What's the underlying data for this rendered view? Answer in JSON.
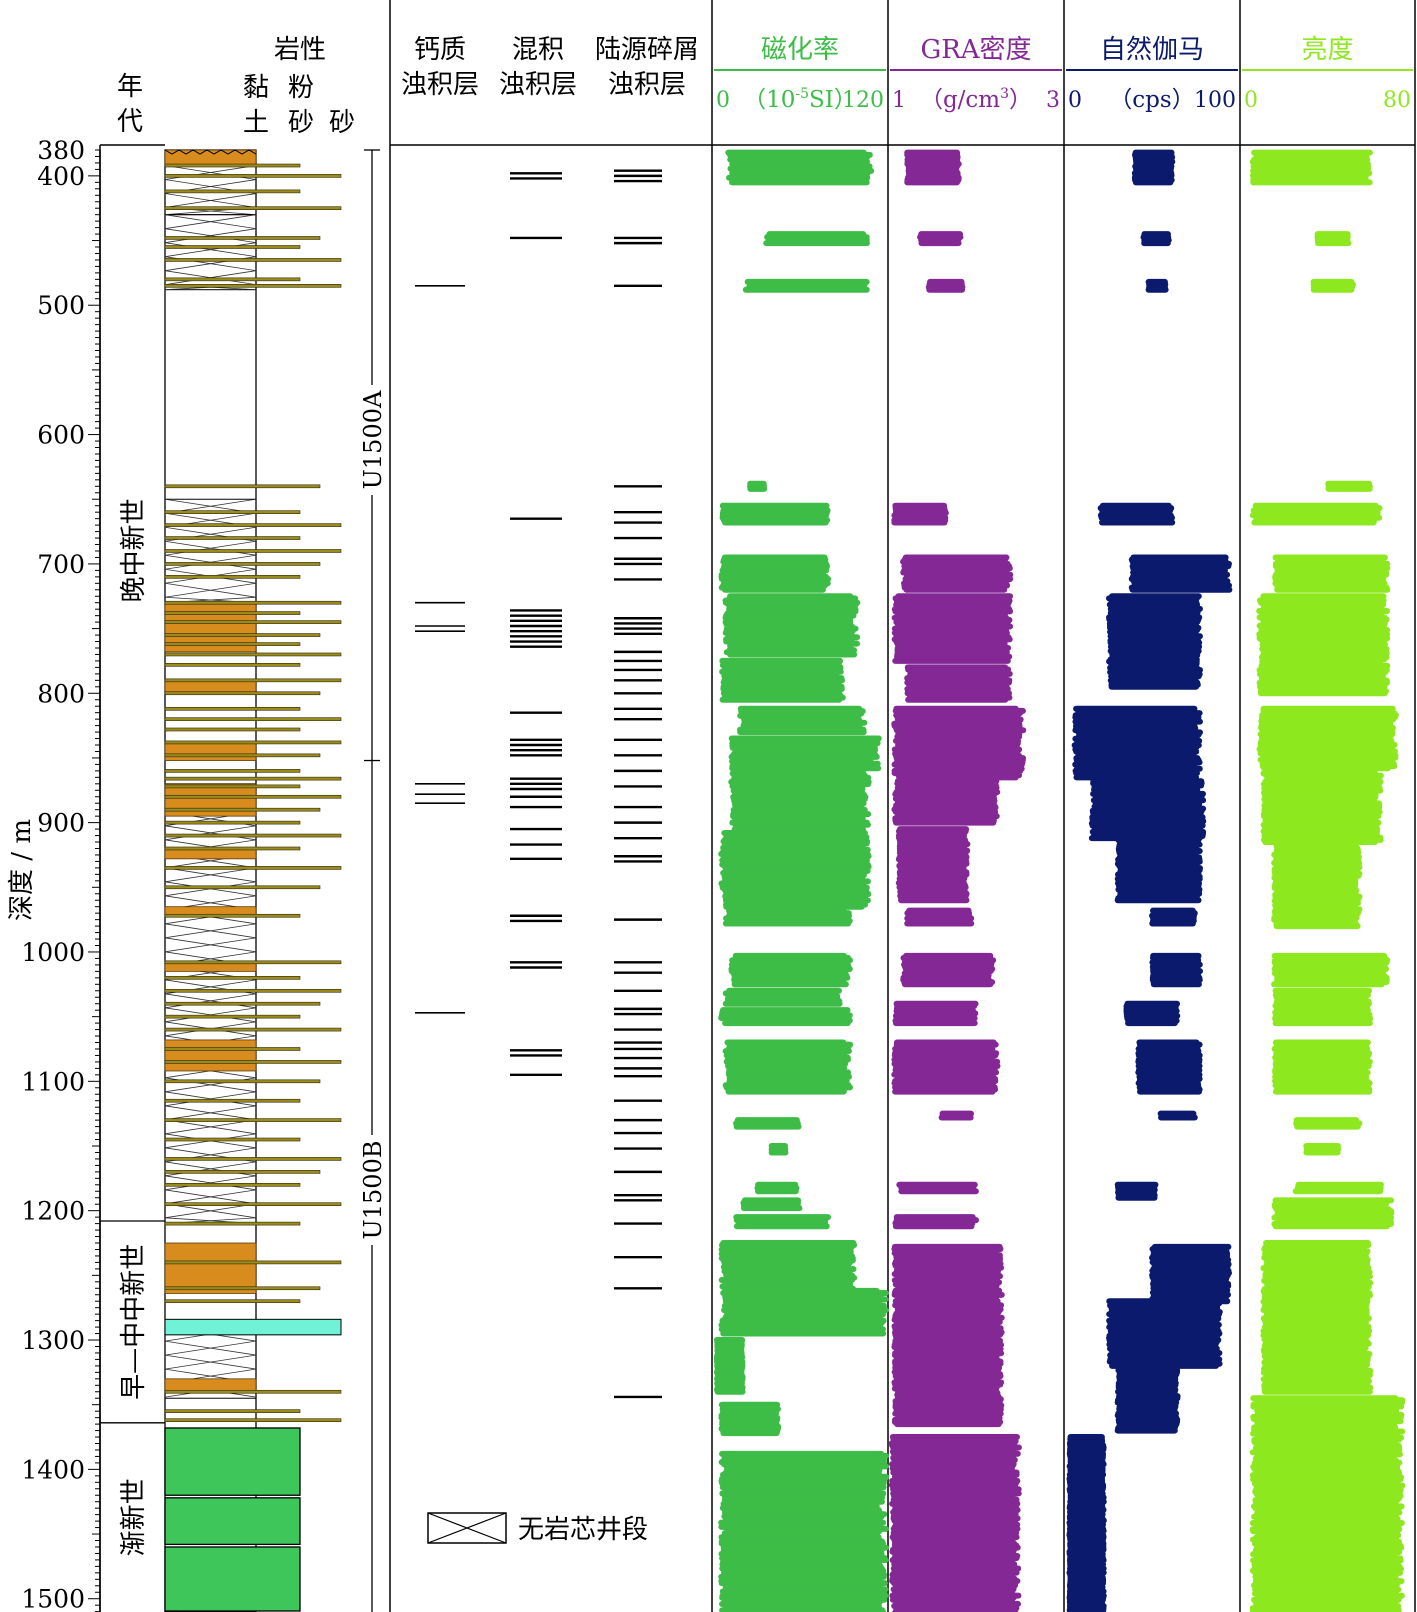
{
  "chart_data": {
    "type": "scatter",
    "depth_axis": {
      "label": "深度 / m",
      "range": [
        380,
        1525
      ],
      "ticks": [
        380,
        400,
        500,
        600,
        700,
        800,
        900,
        1000,
        1100,
        1200,
        1300,
        1400,
        1500
      ]
    },
    "age_column": {
      "header": [
        "年",
        "代"
      ],
      "epochs": [
        {
          "label": "晚中新世",
          "top": 380,
          "bottom": 1208
        },
        {
          "label": "早—中中新世",
          "top": 1208,
          "bottom": 1364
        },
        {
          "label": "渐新世",
          "top": 1364,
          "bottom": 1525
        }
      ]
    },
    "lithology_column": {
      "header": "岩性",
      "classes": [
        "黏土",
        "粉砂",
        "砂"
      ],
      "legend_no_core": "无岩芯井段",
      "no_core_intervals": [
        [
          392,
          430
        ],
        [
          430,
          488
        ],
        [
          650,
          730
        ],
        [
          870,
          1210
        ],
        [
          1290,
          1345
        ]
      ],
      "orange_intervals": [
        [
          380,
          392
        ],
        [
          730,
          768
        ],
        [
          790,
          800
        ],
        [
          838,
          852
        ],
        [
          870,
          895
        ],
        [
          920,
          928
        ],
        [
          965,
          972
        ],
        [
          1008,
          1015
        ],
        [
          1068,
          1092
        ],
        [
          1225,
          1264
        ],
        [
          1330,
          1340
        ]
      ],
      "cyan_intervals": [
        [
          1284,
          1296
        ]
      ],
      "green_intervals": [
        [
          1368,
          1420
        ],
        [
          1422,
          1458
        ],
        [
          1460,
          1530
        ]
      ],
      "thin_beds": [
        392,
        400,
        412,
        425,
        448,
        455,
        465,
        480,
        485,
        640,
        660,
        670,
        680,
        690,
        700,
        710,
        730,
        738,
        745,
        755,
        762,
        770,
        778,
        790,
        800,
        812,
        820,
        828,
        838,
        848,
        860,
        866,
        872,
        880,
        890,
        900,
        910,
        920,
        935,
        950,
        972,
        1008,
        1020,
        1030,
        1040,
        1050,
        1060,
        1075,
        1085,
        1100,
        1115,
        1130,
        1145,
        1160,
        1170,
        1180,
        1195,
        1210,
        1240,
        1260,
        1270,
        1340,
        1355,
        1362
      ]
    },
    "holes": [
      {
        "label": "U1500A",
        "top": 380,
        "bottom": 852
      },
      {
        "label": "U1500B",
        "top": 852,
        "bottom": 1525
      }
    ],
    "turbidite_columns": [
      {
        "header": [
          "钙质",
          "浊积层"
        ],
        "depths": [
          485,
          730,
          748,
          752,
          870,
          878,
          885,
          1047
        ]
      },
      {
        "header": [
          "混积",
          "浊积层"
        ],
        "depths": [
          398,
          402,
          448,
          665,
          736,
          740,
          744,
          748,
          752,
          756,
          760,
          764,
          815,
          836,
          840,
          844,
          848,
          866,
          870,
          874,
          880,
          888,
          905,
          917,
          928,
          972,
          976,
          1008,
          1012,
          1076,
          1080,
          1095
        ]
      },
      {
        "header": [
          "陆源碎屑",
          "浊积层"
        ],
        "depths": [
          396,
          400,
          404,
          448,
          452,
          485,
          640,
          660,
          668,
          680,
          696,
          700,
          712,
          742,
          746,
          750,
          754,
          768,
          775,
          782,
          790,
          800,
          812,
          820,
          836,
          848,
          860,
          872,
          888,
          900,
          912,
          926,
          930,
          975,
          1008,
          1016,
          1030,
          1044,
          1048,
          1060,
          1070,
          1075,
          1082,
          1090,
          1096,
          1115,
          1130,
          1140,
          1152,
          1170,
          1188,
          1192,
          1210,
          1236,
          1260,
          1344
        ]
      }
    ],
    "series": [
      {
        "name": "磁化率",
        "unit": "（10⁻⁵SI）",
        "unit_main": "（10",
        "unit_sup": "-5",
        "unit_tail": "SI）",
        "xlim": [
          0,
          120
        ],
        "x_tick_labels": [
          "0",
          "120"
        ],
        "color": "#3dbd47",
        "intervals": [
          [
            382,
            405,
            10,
            110
          ],
          [
            445,
            452,
            36,
            108
          ],
          [
            482,
            488,
            22,
            108
          ],
          [
            638,
            642,
            25,
            35
          ],
          [
            655,
            668,
            5,
            80
          ],
          [
            695,
            720,
            5,
            80
          ],
          [
            725,
            770,
            8,
            100
          ],
          [
            775,
            805,
            5,
            90
          ],
          [
            812,
            830,
            18,
            105
          ],
          [
            835,
            858,
            12,
            115
          ],
          [
            862,
            905,
            12,
            108
          ],
          [
            908,
            965,
            5,
            108
          ],
          [
            968,
            978,
            8,
            95
          ],
          [
            1003,
            1025,
            12,
            95
          ],
          [
            1030,
            1040,
            8,
            88
          ],
          [
            1045,
            1055,
            5,
            95
          ],
          [
            1070,
            1108,
            8,
            95
          ],
          [
            1130,
            1135,
            15,
            60
          ],
          [
            1150,
            1155,
            40,
            50
          ],
          [
            1180,
            1185,
            30,
            58
          ],
          [
            1192,
            1198,
            20,
            60
          ],
          [
            1205,
            1212,
            15,
            80
          ],
          [
            1225,
            1262,
            5,
            98
          ],
          [
            1262,
            1295,
            5,
            120
          ],
          [
            1300,
            1340,
            2,
            20
          ],
          [
            1350,
            1372,
            5,
            45
          ],
          [
            1388,
            1525,
            5,
            120
          ]
        ]
      },
      {
        "name": "GRA密度",
        "unit": "（g/cm³）",
        "unit_main": "（g/cm",
        "unit_sup": "3",
        "unit_tail": "）",
        "xlim": [
          1,
          3
        ],
        "x_tick_labels": [
          "1",
          "3"
        ],
        "color": "#842896",
        "intervals": [
          [
            382,
            405,
            1.2,
            1.8
          ],
          [
            445,
            452,
            1.35,
            1.82
          ],
          [
            482,
            488,
            1.45,
            1.85
          ],
          [
            655,
            668,
            1.05,
            1.65
          ],
          [
            695,
            720,
            1.15,
            2.4
          ],
          [
            725,
            775,
            1.05,
            2.4
          ],
          [
            780,
            805,
            1.2,
            2.4
          ],
          [
            812,
            865,
            1.05,
            2.55
          ],
          [
            868,
            900,
            1.05,
            2.25
          ],
          [
            905,
            960,
            1.1,
            1.9
          ],
          [
            968,
            978,
            1.2,
            1.95
          ],
          [
            1003,
            1025,
            1.15,
            2.2
          ],
          [
            1040,
            1055,
            1.05,
            2.0
          ],
          [
            1070,
            1108,
            1.05,
            2.25
          ],
          [
            1125,
            1128,
            1.6,
            1.95
          ],
          [
            1180,
            1185,
            1.1,
            2.0
          ],
          [
            1205,
            1212,
            1.05,
            2.0
          ],
          [
            1228,
            1365,
            1.05,
            2.3
          ],
          [
            1375,
            1525,
            1.02,
            2.5
          ]
        ]
      },
      {
        "name": "自然伽马",
        "unit": "（cps）",
        "unit_main": "（cps）",
        "unit_sup": "",
        "unit_tail": "",
        "xlim": [
          0,
          100
        ],
        "x_tick_labels": [
          "0",
          "100"
        ],
        "color": "#0c1a6e",
        "intervals": [
          [
            382,
            405,
            40,
            62
          ],
          [
            445,
            452,
            45,
            60
          ],
          [
            482,
            488,
            48,
            58
          ],
          [
            655,
            668,
            20,
            62
          ],
          [
            695,
            720,
            38,
            95
          ],
          [
            725,
            795,
            25,
            78
          ],
          [
            812,
            865,
            5,
            78
          ],
          [
            868,
            912,
            15,
            80
          ],
          [
            912,
            960,
            30,
            78
          ],
          [
            968,
            978,
            50,
            75
          ],
          [
            1003,
            1025,
            50,
            78
          ],
          [
            1040,
            1055,
            35,
            65
          ],
          [
            1070,
            1108,
            42,
            78
          ],
          [
            1125,
            1128,
            55,
            75
          ],
          [
            1180,
            1190,
            30,
            52
          ],
          [
            1228,
            1270,
            50,
            95
          ],
          [
            1270,
            1320,
            25,
            90
          ],
          [
            1320,
            1370,
            30,
            65
          ],
          [
            1375,
            1525,
            2,
            22
          ]
        ]
      },
      {
        "name": "亮度",
        "unit": "",
        "unit_main": "",
        "unit_sup": "",
        "unit_tail": "",
        "xlim": [
          0,
          80
        ],
        "x_tick_labels": [
          "0",
          "80"
        ],
        "color": "#8ee81f",
        "intervals": [
          [
            382,
            405,
            5,
            60
          ],
          [
            445,
            452,
            35,
            50
          ],
          [
            482,
            488,
            33,
            52
          ],
          [
            638,
            642,
            40,
            60
          ],
          [
            655,
            668,
            5,
            65
          ],
          [
            695,
            720,
            15,
            68
          ],
          [
            725,
            800,
            8,
            68
          ],
          [
            812,
            858,
            8,
            72
          ],
          [
            862,
            915,
            10,
            65
          ],
          [
            915,
            980,
            15,
            55
          ],
          [
            1003,
            1025,
            15,
            68
          ],
          [
            1030,
            1055,
            15,
            60
          ],
          [
            1070,
            1108,
            15,
            60
          ],
          [
            1130,
            1135,
            25,
            55
          ],
          [
            1150,
            1155,
            30,
            45
          ],
          [
            1180,
            1185,
            25,
            65
          ],
          [
            1192,
            1212,
            15,
            70
          ],
          [
            1225,
            1340,
            10,
            60
          ],
          [
            1345,
            1525,
            5,
            75
          ]
        ]
      }
    ]
  }
}
